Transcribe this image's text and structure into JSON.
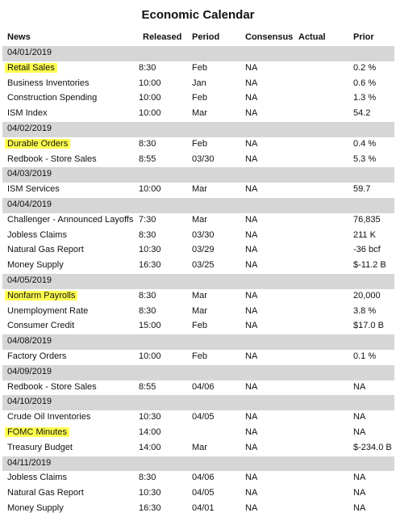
{
  "title": "Economic Calendar",
  "headers": {
    "news": "News",
    "released": "Released",
    "period": "Period",
    "consensus": "Consensus",
    "actual": "Actual",
    "prior": "Prior"
  },
  "rows": [
    {
      "type": "date",
      "label": "04/01/2019"
    },
    {
      "type": "event",
      "news": "Retail Sales",
      "highlight": true,
      "released": "8:30",
      "period": "Feb",
      "consensus": "NA",
      "actual": "",
      "prior": "0.2 %"
    },
    {
      "type": "event",
      "news": "Business Inventories",
      "highlight": false,
      "released": "10:00",
      "period": "Jan",
      "consensus": "NA",
      "actual": "",
      "prior": "0.6 %"
    },
    {
      "type": "event",
      "news": "Construction Spending",
      "highlight": false,
      "released": "10:00",
      "period": "Feb",
      "consensus": "NA",
      "actual": "",
      "prior": "1.3 %"
    },
    {
      "type": "event",
      "news": "ISM Index",
      "highlight": false,
      "released": "10:00",
      "period": "Mar",
      "consensus": "NA",
      "actual": "",
      "prior": "54.2"
    },
    {
      "type": "date",
      "label": "04/02/2019"
    },
    {
      "type": "event",
      "news": "Durable Orders",
      "highlight": true,
      "released": "8:30",
      "period": "Feb",
      "consensus": "NA",
      "actual": "",
      "prior": "0.4 %"
    },
    {
      "type": "event",
      "news": "Redbook - Store Sales",
      "highlight": false,
      "released": "8:55",
      "period": "03/30",
      "consensus": "NA",
      "actual": "",
      "prior": "5.3 %"
    },
    {
      "type": "date",
      "label": "04/03/2019"
    },
    {
      "type": "event",
      "news": "ISM Services",
      "highlight": false,
      "released": "10:00",
      "period": "Mar",
      "consensus": "NA",
      "actual": "",
      "prior": "59.7"
    },
    {
      "type": "date",
      "label": "04/04/2019"
    },
    {
      "type": "event",
      "news": "Challenger - Announced Layoffs",
      "highlight": false,
      "released": "7:30",
      "period": "Mar",
      "consensus": "NA",
      "actual": "",
      "prior": "76,835"
    },
    {
      "type": "event",
      "news": "Jobless Claims",
      "highlight": false,
      "released": "8:30",
      "period": "03/30",
      "consensus": "NA",
      "actual": "",
      "prior": "211 K"
    },
    {
      "type": "event",
      "news": "Natural Gas Report",
      "highlight": false,
      "released": "10:30",
      "period": "03/29",
      "consensus": "NA",
      "actual": "",
      "prior": "-36 bcf"
    },
    {
      "type": "event",
      "news": "Money Supply",
      "highlight": false,
      "released": "16:30",
      "period": "03/25",
      "consensus": "NA",
      "actual": "",
      "prior": "$-11.2 B"
    },
    {
      "type": "date",
      "label": "04/05/2019"
    },
    {
      "type": "event",
      "news": "Nonfarm Payrolls",
      "highlight": true,
      "released": "8:30",
      "period": "Mar",
      "consensus": "NA",
      "actual": "",
      "prior": "20,000"
    },
    {
      "type": "event",
      "news": "Unemployment Rate",
      "highlight": false,
      "released": "8:30",
      "period": "Mar",
      "consensus": "NA",
      "actual": "",
      "prior": "3.8 %"
    },
    {
      "type": "event",
      "news": "Consumer Credit",
      "highlight": false,
      "released": "15:00",
      "period": "Feb",
      "consensus": "NA",
      "actual": "",
      "prior": "$17.0 B"
    },
    {
      "type": "date",
      "label": "04/08/2019"
    },
    {
      "type": "event",
      "news": "Factory Orders",
      "highlight": false,
      "released": "10:00",
      "period": "Feb",
      "consensus": "NA",
      "actual": "",
      "prior": "0.1 %"
    },
    {
      "type": "date",
      "label": "04/09/2019"
    },
    {
      "type": "event",
      "news": "Redbook - Store Sales",
      "highlight": false,
      "released": "8:55",
      "period": "04/06",
      "consensus": "NA",
      "actual": "",
      "prior": "NA"
    },
    {
      "type": "date",
      "label": "04/10/2019"
    },
    {
      "type": "event",
      "news": "Crude Oil Inventories",
      "highlight": false,
      "released": "10:30",
      "period": "04/05",
      "consensus": "NA",
      "actual": "",
      "prior": "NA"
    },
    {
      "type": "event",
      "news": "FOMC Minutes",
      "highlight": true,
      "released": "14:00",
      "period": "",
      "consensus": "NA",
      "actual": "",
      "prior": "NA"
    },
    {
      "type": "event",
      "news": "Treasury Budget",
      "highlight": false,
      "released": "14:00",
      "period": "Mar",
      "consensus": "NA",
      "actual": "",
      "prior": "$-234.0 B"
    },
    {
      "type": "date",
      "label": "04/11/2019"
    },
    {
      "type": "event",
      "news": "Jobless Claims",
      "highlight": false,
      "released": "8:30",
      "period": "04/06",
      "consensus": "NA",
      "actual": "",
      "prior": "NA"
    },
    {
      "type": "event",
      "news": "Natural Gas Report",
      "highlight": false,
      "released": "10:30",
      "period": "04/05",
      "consensus": "NA",
      "actual": "",
      "prior": "NA"
    },
    {
      "type": "event",
      "news": "Money Supply",
      "highlight": false,
      "released": "16:30",
      "period": "04/01",
      "consensus": "NA",
      "actual": "",
      "prior": "NA"
    }
  ],
  "colors": {
    "date_row_bg": "#d6d6d6",
    "highlight": "#ffff4f",
    "text": "#111111"
  }
}
